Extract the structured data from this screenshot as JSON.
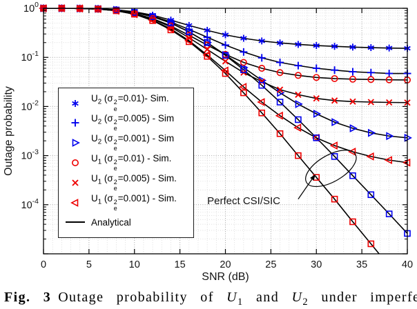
{
  "figure": {
    "legend": {
      "analytical_label": "Analytical"
    }
  },
  "caption": {
    "prefix": "Fig. 3",
    "segments": [
      {
        "t": "Outage probability of "
      },
      {
        "t": "U",
        "s": "i"
      },
      {
        "t": "1",
        "s": "sub"
      },
      {
        "t": " and "
      },
      {
        "t": "U",
        "s": "i"
      },
      {
        "t": "2",
        "s": "sub"
      },
      {
        "t": " under imperfe"
      }
    ]
  },
  "chart_data": {
    "type": "line",
    "title": "",
    "xlabel": "SNR (dB)",
    "ylabel": "Outage probability",
    "xlim": [
      0,
      40
    ],
    "ylim": [
      1e-05,
      1
    ],
    "ylim_log10": [
      -5,
      0
    ],
    "x_ticks": [
      0,
      5,
      10,
      15,
      20,
      25,
      30,
      35,
      40
    ],
    "y_tick_exponents": [
      0,
      -1,
      -2,
      -3,
      -4
    ],
    "y_scale": "log",
    "grid": true,
    "legend_position": "inside-left-middle",
    "colors": {
      "blue": "#0000ee",
      "red": "#ee0000",
      "analytical_line": "#000000"
    },
    "x": [
      0,
      2,
      4,
      6,
      8,
      10,
      12,
      14,
      16,
      18,
      20,
      22,
      24,
      26,
      28,
      30,
      32,
      34,
      36,
      38,
      40
    ],
    "series": [
      {
        "id": "u2-001-sim",
        "name": "U2 (sigma_e^2=0.01) - Sim.",
        "marker": "asterisk",
        "color": "blue",
        "in_legend": true,
        "label_segments": [
          {
            "t": "U"
          },
          {
            "t": "2",
            "s": "sub"
          },
          {
            "t": " ("
          },
          {
            "t": "σ"
          },
          {
            "t": "2",
            "s": "sup"
          },
          {
            "t": "e",
            "s": "subunder"
          },
          {
            "t": "=0.01)- Sim."
          }
        ],
        "values": [
          1,
          1,
          0.993,
          0.977,
          0.933,
          0.851,
          0.724,
          0.575,
          0.447,
          0.355,
          0.288,
          0.245,
          0.216,
          0.197,
          0.184,
          0.174,
          0.168,
          0.162,
          0.158,
          0.155,
          0.153
        ]
      },
      {
        "id": "u2-0005-sim",
        "name": "U2 (sigma_e^2=0.005) - Sim",
        "marker": "plus",
        "color": "blue",
        "in_legend": true,
        "label_segments": [
          {
            "t": "U"
          },
          {
            "t": "2",
            "s": "sub"
          },
          {
            "t": " ("
          },
          {
            "t": "σ"
          },
          {
            "t": "2",
            "s": "sup"
          },
          {
            "t": "e",
            "s": "subunder"
          },
          {
            "t": "=0.005) - Sim"
          }
        ],
        "values": [
          1,
          1,
          0.991,
          0.973,
          0.923,
          0.832,
          0.692,
          0.525,
          0.372,
          0.257,
          0.178,
          0.129,
          0.098,
          0.079,
          0.068,
          0.06,
          0.055,
          0.051,
          0.049,
          0.047,
          0.047
        ]
      },
      {
        "id": "u2-0001-sim",
        "name": "U2 (sigma_e^2=0.001) - Sim",
        "marker": "triangle-right",
        "color": "blue",
        "in_legend": true,
        "label_segments": [
          {
            "t": "U"
          },
          {
            "t": "2",
            "s": "sub"
          },
          {
            "t": " ("
          },
          {
            "t": "σ"
          },
          {
            "t": "2",
            "s": "sup"
          },
          {
            "t": "e",
            "s": "subunder"
          },
          {
            "t": "=0.001) - Sim"
          }
        ],
        "values": [
          1,
          1,
          0.991,
          0.973,
          0.923,
          0.822,
          0.676,
          0.501,
          0.331,
          0.2,
          0.112,
          0.062,
          0.034,
          0.019,
          0.0112,
          0.0071,
          0.0048,
          0.0036,
          0.0029,
          0.0025,
          0.0023
        ]
      },
      {
        "id": "u1-001-sim",
        "name": "U1 (sigma_e^2=0.01) - Sim.",
        "marker": "circle",
        "color": "red",
        "in_legend": true,
        "label_segments": [
          {
            "t": "U"
          },
          {
            "t": "1",
            "s": "sub"
          },
          {
            "t": " ("
          },
          {
            "t": "σ"
          },
          {
            "t": "2",
            "s": "sup"
          },
          {
            "t": "e",
            "s": "subunder"
          },
          {
            "t": "=0.01) - Sim."
          }
        ],
        "values": [
          1,
          1,
          0.989,
          0.966,
          0.902,
          0.785,
          0.617,
          0.437,
          0.282,
          0.178,
          0.115,
          0.079,
          0.06,
          0.049,
          0.043,
          0.039,
          0.037,
          0.036,
          0.0355,
          0.035,
          0.0347
        ]
      },
      {
        "id": "u1-0005-sim",
        "name": "U1 (sigma_e^2=0.005) - Sim.",
        "marker": "x",
        "color": "red",
        "in_legend": true,
        "label_segments": [
          {
            "t": "U"
          },
          {
            "t": "1",
            "s": "sub"
          },
          {
            "t": " ("
          },
          {
            "t": "σ"
          },
          {
            "t": "2",
            "s": "sup"
          },
          {
            "t": "e",
            "s": "subunder"
          },
          {
            "t": "=0.005) - Sim."
          }
        ],
        "values": [
          1,
          1,
          0.989,
          0.966,
          0.897,
          0.776,
          0.603,
          0.417,
          0.251,
          0.145,
          0.083,
          0.049,
          0.032,
          0.022,
          0.0174,
          0.0146,
          0.0132,
          0.0126,
          0.0123,
          0.0121,
          0.012
        ]
      },
      {
        "id": "u1-0001-sim",
        "name": "U1 (sigma_e^2=0.001) - Sim.",
        "marker": "triangle-left",
        "color": "red",
        "in_legend": true,
        "label_segments": [
          {
            "t": "U"
          },
          {
            "t": "1",
            "s": "sub"
          },
          {
            "t": " ("
          },
          {
            "t": "σ"
          },
          {
            "t": "2",
            "s": "sup"
          },
          {
            "t": "e",
            "s": "subunder"
          },
          {
            "t": "=0.001) - Sim."
          }
        ],
        "values": [
          1,
          1,
          0.989,
          0.964,
          0.891,
          0.759,
          0.575,
          0.38,
          0.219,
          0.112,
          0.054,
          0.025,
          0.0123,
          0.0065,
          0.0037,
          0.0023,
          0.0016,
          0.0012,
          0.00096,
          0.00081,
          0.00072
        ]
      },
      {
        "id": "u2-perfect",
        "name": "U2 - Perfect CSI/SIC",
        "marker": "square",
        "color": "blue",
        "in_legend": false,
        "label_segments": [],
        "values": [
          1,
          1,
          0.991,
          0.973,
          0.923,
          0.822,
          0.676,
          0.501,
          0.331,
          0.2,
          0.11,
          0.056,
          0.027,
          0.0123,
          0.0054,
          0.0023,
          0.00096,
          0.00039,
          0.00016,
          6.5e-05,
          2.6e-05
        ]
      },
      {
        "id": "u1-perfect",
        "name": "U1 - Perfect CSI/SIC",
        "marker": "square",
        "color": "red",
        "in_legend": false,
        "label_segments": [],
        "values": [
          1,
          1,
          0.989,
          0.964,
          0.891,
          0.759,
          0.562,
          0.363,
          0.209,
          0.105,
          0.047,
          0.019,
          0.0074,
          0.0028,
          0.001,
          0.00036,
          0.00013,
          4.5e-05,
          1.6e-05,
          5.6e-06,
          2e-06
        ]
      }
    ],
    "annotation": {
      "text": "Perfect CSI/SIC",
      "text_pos": {
        "x_db": 18,
        "y_prob": 0.00012
      },
      "arrow_from": {
        "x_db": 28,
        "y_prob": 0.00013
      },
      "arrow_to": {
        "x_db": 29.9,
        "y_prob": 0.00042
      },
      "ellipse": {
        "cx_db": 31.6,
        "cy_prob": 0.00055,
        "rx_db": 3.1,
        "ry_decades": 0.27,
        "rotation_deg": -30
      }
    }
  }
}
